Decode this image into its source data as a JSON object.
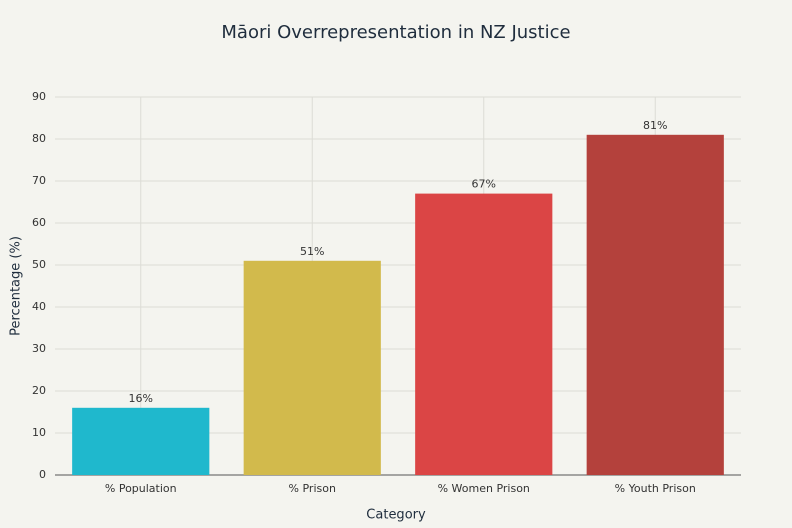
{
  "chart_data": {
    "type": "bar",
    "title": "Māori Overrepresentation in NZ Justice",
    "x_label": "Category",
    "y_label": "Percentage (%)",
    "categories": [
      "% Population",
      "% Prison",
      "% Women Prison",
      "% Youth Prison"
    ],
    "values": [
      16,
      51,
      67,
      81
    ],
    "value_labels": [
      "16%",
      "51%",
      "67%",
      "81%"
    ],
    "colors": [
      "#1fb8cd",
      "#d2ba4c",
      "#db4545",
      "#b4413c"
    ],
    "ylim": [
      0,
      90
    ],
    "yticks": [
      0,
      10,
      20,
      30,
      40,
      50,
      60,
      70,
      80,
      90
    ],
    "grid": true
  }
}
